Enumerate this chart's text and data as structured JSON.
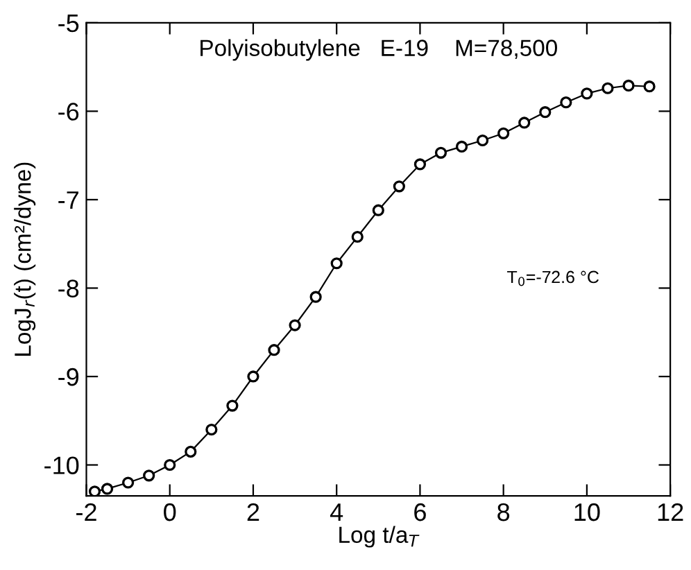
{
  "chart_data": {
    "type": "line",
    "title": "Polyisobutylene   E-19    M=78,500",
    "xlabel": "Log t/a$_{T}$",
    "ylabel": "LogJ$_{r}$(t) (cm²/dyne)",
    "annotations": [
      "T$_{0}$=-72.6 °C"
    ],
    "x": [
      -1.8,
      -1.5,
      -1,
      -0.5,
      0,
      0.5,
      1,
      1.5,
      2,
      2.5,
      3,
      3.5,
      4,
      4.5,
      5,
      5.5,
      6,
      6.5,
      7,
      7.5,
      8,
      8.5,
      9,
      9.5,
      10,
      10.5,
      11,
      11.5
    ],
    "series": [
      {
        "color": "#000000",
        "values": [
          -10.3,
          -10.27,
          -10.2,
          -10.12,
          -10.0,
          -9.85,
          -9.6,
          -9.33,
          -9.0,
          -8.7,
          -8.42,
          -8.1,
          -7.72,
          -7.42,
          -7.12,
          -6.85,
          -6.6,
          -6.47,
          -6.4,
          -6.33,
          -6.25,
          -6.13,
          -6.01,
          -5.9,
          -5.8,
          -5.74,
          -5.71,
          -5.72
        ]
      }
    ],
    "xlim": [
      -2,
      12
    ],
    "ylim": [
      -10.35,
      -5
    ],
    "xticks": [
      -2,
      0,
      2,
      4,
      6,
      8,
      10,
      12
    ],
    "yticks": [
      -10,
      -9,
      -8,
      -7,
      -6,
      -5
    ],
    "marker": "circle",
    "line_style": "solid",
    "grid": false,
    "legend": false
  }
}
